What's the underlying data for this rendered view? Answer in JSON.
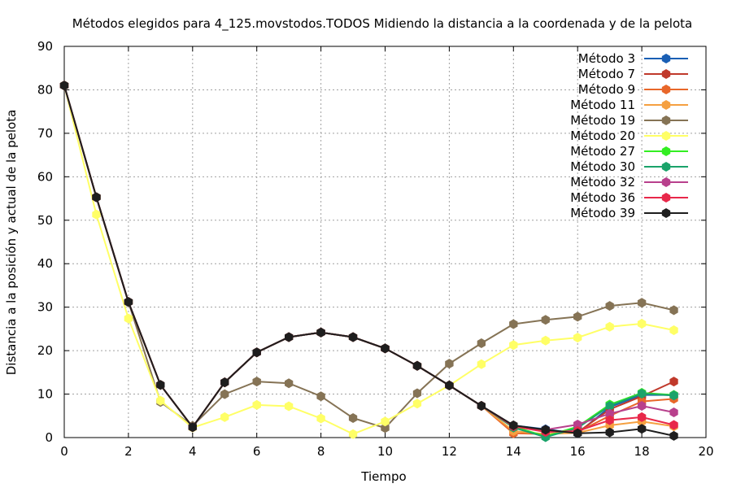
{
  "chart_data": {
    "type": "line",
    "title": "Métodos elegidos para 4_125.movstodos.TODOS Midiendo la distancia a la coordenada y de la pelota",
    "xlabel": "Tiempo",
    "ylabel": "Distancia a la posición y actual de la pelota",
    "xlim": [
      0,
      20
    ],
    "ylim": [
      0,
      90
    ],
    "xticks": [
      0,
      2,
      4,
      6,
      8,
      10,
      12,
      14,
      16,
      18,
      20
    ],
    "yticks": [
      0,
      10,
      20,
      30,
      40,
      50,
      60,
      70,
      80,
      90
    ],
    "grid": true,
    "legend_position": "top-right",
    "series": [
      {
        "name": "Método 3",
        "color": "#1a5fb4",
        "x": [
          0,
          1,
          2,
          3,
          4,
          5,
          6,
          7,
          8,
          9,
          10,
          11,
          12,
          13,
          14,
          15,
          16,
          17,
          18,
          19
        ],
        "y": [
          81,
          55.3,
          31.2,
          12.1,
          2.4,
          12.7,
          19.6,
          23.1,
          24.2,
          23.1,
          20.5,
          16.5,
          12,
          7.3,
          2.8,
          1.9,
          1,
          7,
          9.8,
          9.8
        ]
      },
      {
        "name": "Método 7",
        "color": "#c0392b",
        "x": [
          0,
          1,
          2,
          3,
          4,
          5,
          6,
          7,
          8,
          9,
          10,
          11,
          12,
          13,
          14,
          15,
          16,
          17,
          18,
          19
        ],
        "y": [
          81,
          55.3,
          31.2,
          12.1,
          2.4,
          12.7,
          19.6,
          23.1,
          24.2,
          23.1,
          20.5,
          16.5,
          12,
          7.3,
          2.8,
          1.5,
          1.2,
          6.5,
          9.5,
          12.9
        ]
      },
      {
        "name": "Método 9",
        "color": "#e8672a",
        "x": [
          0,
          1,
          2,
          3,
          4,
          5,
          6,
          7,
          8,
          9,
          10,
          11,
          12,
          13,
          14,
          15,
          16,
          17,
          18,
          19
        ],
        "y": [
          81,
          55.3,
          31.2,
          12.1,
          2.4,
          12.7,
          19.6,
          23.1,
          24.2,
          23.1,
          20.5,
          16.5,
          12,
          7.3,
          1,
          0.8,
          1.3,
          5,
          8.3,
          8.9
        ]
      },
      {
        "name": "Método 11",
        "color": "#f5a040",
        "x": [
          0,
          1,
          2,
          3,
          4,
          5,
          6,
          7,
          8,
          9,
          10,
          11,
          12,
          13,
          14,
          15,
          16,
          17,
          18,
          19
        ],
        "y": [
          81,
          55.3,
          31.2,
          12.1,
          2.4,
          12.7,
          19.6,
          23.1,
          24.2,
          23.1,
          20.5,
          16.5,
          12,
          7.3,
          1.5,
          0.8,
          1.1,
          2.8,
          3.7,
          2.6
        ]
      },
      {
        "name": "Método 19",
        "color": "#857355",
        "x": [
          0,
          1,
          2,
          3,
          4,
          5,
          6,
          7,
          8,
          9,
          10,
          11,
          12,
          13,
          14,
          15,
          16,
          17,
          18,
          19
        ],
        "y": [
          81,
          55.3,
          31.2,
          8.2,
          2.7,
          10,
          12.9,
          12.5,
          9.5,
          4.5,
          2.2,
          10.2,
          17,
          21.7,
          26.1,
          27.1,
          27.8,
          30.3,
          31,
          29.3
        ]
      },
      {
        "name": "Método 20",
        "color": "#ffff66",
        "x": [
          0,
          1,
          2,
          3,
          4,
          5,
          6,
          7,
          8,
          9,
          10,
          11,
          12,
          13,
          14,
          15,
          16,
          17,
          18,
          19
        ],
        "y": [
          81,
          51.3,
          27.4,
          8.5,
          2.3,
          4.7,
          7.5,
          7.2,
          4.4,
          0.8,
          3.7,
          7.8,
          12,
          16.9,
          21.3,
          22.3,
          23,
          25.5,
          26.2,
          24.7
        ]
      },
      {
        "name": "Método 27",
        "color": "#33ee22",
        "x": [
          0,
          1,
          2,
          3,
          4,
          5,
          6,
          7,
          8,
          9,
          10,
          11,
          12,
          13,
          14,
          15,
          16,
          17,
          18,
          19
        ],
        "y": [
          81,
          55.3,
          31.2,
          12.1,
          2.4,
          12.7,
          19.6,
          23.1,
          24.2,
          23.1,
          20.5,
          16.5,
          12,
          7.3,
          2.5,
          0.3,
          2.5,
          7.6,
          10.3,
          9.8
        ]
      },
      {
        "name": "Método 30",
        "color": "#1aa36a",
        "x": [
          0,
          1,
          2,
          3,
          4,
          5,
          6,
          7,
          8,
          9,
          10,
          11,
          12,
          13,
          14,
          15,
          16,
          17,
          18,
          19
        ],
        "y": [
          81,
          55.3,
          31.2,
          12.1,
          2.4,
          12.7,
          19.6,
          23.1,
          24.2,
          23.1,
          20.5,
          16.5,
          12,
          7.3,
          2.3,
          0.1,
          2.2,
          7.3,
          10.1,
          9.7
        ]
      },
      {
        "name": "Método 32",
        "color": "#b8408c",
        "x": [
          0,
          1,
          2,
          3,
          4,
          5,
          6,
          7,
          8,
          9,
          10,
          11,
          12,
          13,
          14,
          15,
          16,
          17,
          18,
          19
        ],
        "y": [
          81,
          55.3,
          31.2,
          12.1,
          2.4,
          12.7,
          19.6,
          23.1,
          24.2,
          23.1,
          20.5,
          16.5,
          12,
          7.3,
          2.6,
          1.8,
          3,
          5.5,
          7.3,
          5.8
        ]
      },
      {
        "name": "Método 36",
        "color": "#e8284a",
        "x": [
          0,
          1,
          2,
          3,
          4,
          5,
          6,
          7,
          8,
          9,
          10,
          11,
          12,
          13,
          14,
          15,
          16,
          17,
          18,
          19
        ],
        "y": [
          81,
          55.3,
          31.2,
          12.1,
          2.4,
          12.7,
          19.6,
          23.1,
          24.2,
          23.1,
          20.5,
          16.5,
          12,
          7.3,
          2.6,
          1.3,
          1.5,
          4,
          4.7,
          2.9
        ]
      },
      {
        "name": "Método 39",
        "color": "#1e1e1e",
        "x": [
          0,
          1,
          2,
          3,
          4,
          5,
          6,
          7,
          8,
          9,
          10,
          11,
          12,
          13,
          14,
          15,
          16,
          17,
          18,
          19
        ],
        "y": [
          81,
          55.3,
          31.2,
          12.1,
          2.4,
          12.7,
          19.6,
          23.1,
          24.2,
          23.1,
          20.5,
          16.5,
          12,
          7.3,
          2.8,
          1.8,
          1,
          1.2,
          2,
          0.4
        ]
      }
    ]
  }
}
